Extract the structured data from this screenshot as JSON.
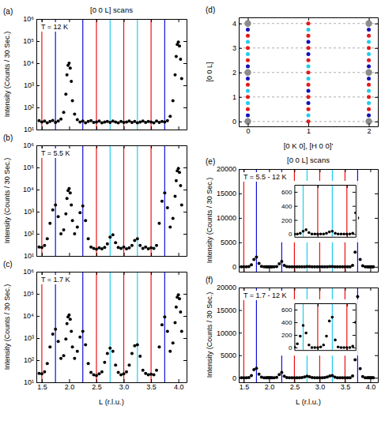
{
  "chart_data": [
    {
      "type": "scatter",
      "panel": "(a)",
      "title": "[0 0 L] scans",
      "annotation": "T = 12 K",
      "x": [
        1.45,
        1.5,
        1.55,
        1.6,
        1.65,
        1.7,
        1.75,
        1.8,
        1.85,
        1.9,
        1.94,
        1.96,
        1.98,
        2.0,
        2.02,
        2.04,
        2.06,
        2.1,
        2.15,
        2.2,
        2.25,
        2.3,
        2.35,
        2.4,
        2.45,
        2.5,
        2.55,
        2.6,
        2.65,
        2.7,
        2.75,
        2.8,
        2.85,
        2.9,
        2.95,
        3.0,
        3.05,
        3.1,
        3.15,
        3.2,
        3.25,
        3.3,
        3.35,
        3.4,
        3.45,
        3.5,
        3.55,
        3.6,
        3.65,
        3.7,
        3.75,
        3.8,
        3.85,
        3.9,
        3.94,
        3.96,
        3.98,
        4.0,
        4.02,
        4.04,
        4.06
      ],
      "values": [
        25,
        22,
        24,
        20,
        23,
        26,
        21,
        24,
        30,
        60,
        400,
        3000,
        8000,
        10000,
        6000,
        1500,
        200,
        50,
        28,
        22,
        24,
        20,
        23,
        25,
        21,
        22,
        24,
        20,
        22,
        23,
        21,
        24,
        22,
        20,
        23,
        21,
        22,
        24,
        21,
        23,
        20,
        22,
        24,
        21,
        23,
        22,
        20,
        24,
        21,
        23,
        22,
        25,
        40,
        200,
        3000,
        20000,
        70000,
        90000,
        60000,
        15000,
        2000
      ],
      "color": "#000000",
      "marker": "circle",
      "log": "y",
      "xlim": [
        1.4,
        4.15
      ],
      "ylim": [
        10,
        1000000
      ],
      "xticks": [
        1.5,
        {
          "value": 2,
          "label": "2.0"
        },
        2.5,
        {
          "value": 3,
          "label": "3.0"
        },
        3.5,
        {
          "value": 4,
          "label": "4.0"
        }
      ],
      "yticks": [
        {
          "value": 10,
          "label": "10¹"
        },
        {
          "value": 100,
          "label": "10²"
        },
        {
          "value": 1000,
          "label": "10³"
        },
        {
          "value": 10000,
          "label": "10⁴"
        },
        {
          "value": 100000,
          "label": "10⁵"
        },
        {
          "value": 1000000,
          "label": "10⁶"
        }
      ],
      "tick_labels": "y",
      "ylabel": "Intensity (Counts / 30 Sec.)",
      "vlines": {
        "values": [
          1.5,
          1.75,
          2.25,
          2.5,
          2.75,
          3.0,
          3.25,
          3.5,
          3.75
        ],
        "colors": [
          "#ee1111",
          "#1111dd",
          "#1111dd",
          "#ee1111",
          "#22ccee",
          "#ee1111",
          "#22ccee",
          "#ee1111",
          "#1111dd"
        ]
      }
    },
    {
      "type": "scatter",
      "panel": "(b)",
      "annotation": "T = 5.5 K",
      "x": [
        1.45,
        1.5,
        1.55,
        1.6,
        1.65,
        1.7,
        1.75,
        1.8,
        1.85,
        1.9,
        1.94,
        1.96,
        1.98,
        2.0,
        2.02,
        2.04,
        2.06,
        2.1,
        2.15,
        2.2,
        2.25,
        2.3,
        2.35,
        2.4,
        2.45,
        2.5,
        2.55,
        2.6,
        2.65,
        2.7,
        2.75,
        2.8,
        2.85,
        2.9,
        2.95,
        3.0,
        3.05,
        3.1,
        3.15,
        3.2,
        3.25,
        3.3,
        3.35,
        3.4,
        3.45,
        3.5,
        3.55,
        3.6,
        3.65,
        3.7,
        3.75,
        3.8,
        3.85,
        3.9,
        3.94,
        3.96,
        3.98,
        4.0,
        4.02,
        4.04,
        4.06
      ],
      "values": [
        25,
        24,
        30,
        60,
        300,
        1200,
        2000,
        600,
        100,
        150,
        800,
        4000,
        9000,
        11000,
        7000,
        2000,
        400,
        100,
        200,
        900,
        1800,
        400,
        60,
        25,
        22,
        20,
        23,
        21,
        24,
        35,
        70,
        90,
        40,
        24,
        22,
        25,
        21,
        23,
        30,
        50,
        60,
        30,
        22,
        25,
        21,
        23,
        22,
        30,
        300,
        3000,
        7000,
        1500,
        200,
        500,
        5000,
        25000,
        70000,
        90000,
        60000,
        15000,
        2000
      ],
      "color": "#000000",
      "marker": "circle",
      "log": "y",
      "xlim": [
        1.4,
        4.15
      ],
      "ylim": [
        10,
        1000000
      ],
      "xticks": [
        1.5,
        {
          "value": 2,
          "label": "2.0"
        },
        2.5,
        {
          "value": 3,
          "label": "3.0"
        },
        3.5,
        {
          "value": 4,
          "label": "4.0"
        }
      ],
      "yticks": [
        {
          "value": 10,
          "label": "10¹"
        },
        {
          "value": 100,
          "label": "10²"
        },
        {
          "value": 1000,
          "label": "10³"
        },
        {
          "value": 10000,
          "label": "10⁴"
        },
        {
          "value": 100000,
          "label": "10⁵"
        },
        {
          "value": 1000000,
          "label": "10⁶"
        }
      ],
      "tick_labels": "y",
      "ylabel": "Intensity (Counts / 30 Sec.)",
      "vlines": {
        "values": [
          1.5,
          1.75,
          2.25,
          2.5,
          2.75,
          3.0,
          3.25,
          3.5,
          3.75
        ],
        "colors": [
          "#ee1111",
          "#1111dd",
          "#1111dd",
          "#ee1111",
          "#22ccee",
          "#ee1111",
          "#22ccee",
          "#ee1111",
          "#1111dd"
        ]
      }
    },
    {
      "type": "scatter",
      "panel": "(c)",
      "annotation": "T = 1.7 K",
      "x": [
        1.45,
        1.5,
        1.55,
        1.6,
        1.65,
        1.7,
        1.75,
        1.8,
        1.85,
        1.9,
        1.94,
        1.96,
        1.98,
        2.0,
        2.02,
        2.04,
        2.06,
        2.1,
        2.15,
        2.2,
        2.25,
        2.3,
        2.35,
        2.4,
        2.45,
        2.5,
        2.55,
        2.6,
        2.65,
        2.7,
        2.75,
        2.8,
        2.85,
        2.9,
        2.95,
        3.0,
        3.05,
        3.1,
        3.15,
        3.2,
        3.25,
        3.3,
        3.35,
        3.4,
        3.45,
        3.5,
        3.55,
        3.6,
        3.65,
        3.7,
        3.75,
        3.8,
        3.85,
        3.9,
        3.94,
        3.96,
        3.98,
        4.0,
        4.02,
        4.04,
        4.06
      ],
      "values": [
        25,
        24,
        30,
        70,
        400,
        1500,
        2500,
        700,
        120,
        160,
        900,
        4500,
        9000,
        11000,
        7000,
        2000,
        400,
        120,
        250,
        1100,
        2000,
        500,
        70,
        28,
        22,
        20,
        24,
        30,
        80,
        200,
        350,
        250,
        60,
        28,
        22,
        24,
        30,
        60,
        200,
        450,
        500,
        150,
        35,
        25,
        22,
        23,
        22,
        35,
        400,
        4000,
        9000,
        2000,
        250,
        600,
        5000,
        25000,
        70000,
        90000,
        60000,
        15000,
        2000
      ],
      "color": "#000000",
      "marker": "circle",
      "log": "y",
      "xlim": [
        1.4,
        4.15
      ],
      "ylim": [
        10,
        1000000
      ],
      "xticks": [
        1.5,
        {
          "value": 2,
          "label": "2.0"
        },
        2.5,
        {
          "value": 3,
          "label": "3.0"
        },
        3.5,
        {
          "value": 4,
          "label": "4.0"
        }
      ],
      "yticks": [
        {
          "value": 10,
          "label": "10¹"
        },
        {
          "value": 100,
          "label": "10²"
        },
        {
          "value": 1000,
          "label": "10³"
        },
        {
          "value": 10000,
          "label": "10⁴"
        },
        {
          "value": 100000,
          "label": "10⁵"
        },
        {
          "value": 1000000,
          "label": "10⁶"
        }
      ],
      "xlabel": "L (r.l.u.)",
      "ylabel": "Intensity (Counts / 30 Sec.)",
      "vlines": {
        "values": [
          1.5,
          1.75,
          2.25,
          2.5,
          2.75,
          3.0,
          3.25,
          3.5,
          3.75
        ],
        "colors": [
          "#ee1111",
          "#1111dd",
          "#1111dd",
          "#ee1111",
          "#22ccee",
          "#ee1111",
          "#22ccee",
          "#ee1111",
          "#1111dd"
        ]
      }
    },
    {
      "type": "scatter",
      "panel": "(d)",
      "xlabel": "[0 K 0], [H 0 0]'",
      "ylabel": "[0 0 L]",
      "xlim": [
        -0.15,
        2.15
      ],
      "ylim": [
        -0.2,
        4.25
      ],
      "xticks": [
        0,
        1,
        2
      ],
      "yticks": [
        0,
        1,
        2,
        3,
        4
      ],
      "grid": true,
      "series": [
        {
          "color": "#8c8c8c",
          "marker": "large-circle",
          "x": [
            0,
            0,
            0,
            2,
            2,
            2
          ],
          "values": [
            0,
            2,
            4,
            0,
            2,
            4
          ]
        },
        {
          "color": "#e31a1c",
          "marker": "small-circle",
          "x": [
            0,
            0,
            0,
            0,
            0,
            0,
            1,
            1,
            1,
            1,
            1,
            1,
            1,
            1,
            1,
            2,
            2,
            2,
            2,
            2,
            2
          ],
          "values": [
            0.5,
            1,
            1.5,
            2.5,
            3,
            3.5,
            0,
            0.5,
            1,
            1.5,
            2,
            2.5,
            3,
            3.5,
            4,
            0.5,
            1,
            1.5,
            2.5,
            3,
            3.5
          ]
        },
        {
          "color": "#1111bb",
          "marker": "small-circle",
          "x": [
            0,
            0,
            0,
            0,
            1,
            1,
            1,
            1,
            2,
            2,
            2,
            2
          ],
          "values": [
            0.25,
            1.75,
            2.25,
            3.75,
            0.75,
            1.25,
            2.75,
            3.25,
            0.25,
            1.75,
            2.25,
            3.75
          ]
        },
        {
          "color": "#22ccee",
          "marker": "small-circle",
          "x": [
            0,
            0,
            0,
            0,
            1,
            1,
            1,
            1,
            2,
            2,
            2,
            2
          ],
          "values": [
            0.75,
            1.25,
            2.75,
            3.25,
            0.25,
            1.75,
            2.25,
            3.75,
            0.75,
            1.25,
            2.75,
            3.25
          ]
        }
      ]
    },
    {
      "type": "scatter",
      "panel": "(e)",
      "title": "[0 0 L] scans",
      "annotation": "T = 5.5 - 12 K",
      "x": [
        1.45,
        1.5,
        1.55,
        1.6,
        1.65,
        1.7,
        1.75,
        1.8,
        1.85,
        1.9,
        1.94,
        1.96,
        1.98,
        2.0,
        2.02,
        2.04,
        2.06,
        2.1,
        2.15,
        2.2,
        2.25,
        2.3,
        2.35,
        2.4,
        2.45,
        2.5,
        2.55,
        2.6,
        2.65,
        2.7,
        2.75,
        2.8,
        2.85,
        2.9,
        2.95,
        3.0,
        3.05,
        3.1,
        3.15,
        3.2,
        3.25,
        3.3,
        3.35,
        3.4,
        3.45,
        3.5,
        3.55,
        3.6,
        3.65,
        3.7,
        3.75,
        3.8,
        3.85,
        3.9,
        3.94,
        3.96,
        3.98,
        4.0,
        4.02,
        4.04,
        4.06
      ],
      "values": [
        0,
        0,
        10,
        40,
        400,
        1500,
        2000,
        700,
        100,
        20,
        0,
        0,
        0,
        0,
        0,
        0,
        0,
        0,
        50,
        600,
        1100,
        300,
        40,
        0,
        0,
        0,
        0,
        0,
        0,
        10,
        40,
        60,
        20,
        0,
        0,
        0,
        0,
        0,
        10,
        30,
        40,
        10,
        0,
        0,
        0,
        0,
        0,
        10,
        300,
        3000,
        10000,
        1500,
        200,
        0,
        0,
        0,
        0,
        0,
        0,
        0,
        0
      ],
      "color": "#000000",
      "marker": "circle",
      "xlim": [
        1.4,
        4.15
      ],
      "ylim": [
        -1000,
        20000
      ],
      "xticks": [
        1.5,
        {
          "value": 2,
          "label": "2.0"
        },
        2.5,
        {
          "value": 3,
          "label": "3.0"
        },
        3.5,
        {
          "value": 4,
          "label": "4.0"
        }
      ],
      "yticks": [
        0,
        5000,
        10000,
        15000,
        20000
      ],
      "tick_labels": "y",
      "ylabel": "Intensity (Counts / 30 Sec.)",
      "vlines": {
        "values": [
          1.5,
          1.75,
          2.25,
          2.5,
          2.75,
          3.0,
          3.25,
          3.5,
          3.75
        ],
        "colors": [
          "#ee1111",
          "#1111dd",
          "#1111dd",
          "#ee1111",
          "#22ccee",
          "#ee1111",
          "#22ccee",
          "#ee1111",
          "#1111dd"
        ]
      },
      "inset": {
        "xlim": [
          2.6,
          3.65
        ],
        "ylim": [
          -40,
          700
        ],
        "xticks": [
          3,
          3.5
        ],
        "yticks": [
          0,
          200,
          400,
          600
        ],
        "tick_labels": "y"
      }
    },
    {
      "type": "scatter",
      "panel": "(f)",
      "annotation": "T = 1.7 - 12 K",
      "x": [
        1.45,
        1.5,
        1.55,
        1.6,
        1.65,
        1.7,
        1.75,
        1.8,
        1.85,
        1.9,
        1.94,
        1.96,
        1.98,
        2.0,
        2.02,
        2.04,
        2.06,
        2.1,
        2.15,
        2.2,
        2.25,
        2.3,
        2.35,
        2.4,
        2.45,
        2.5,
        2.55,
        2.6,
        2.65,
        2.7,
        2.75,
        2.8,
        2.85,
        2.9,
        2.95,
        3.0,
        3.05,
        3.1,
        3.15,
        3.2,
        3.25,
        3.3,
        3.35,
        3.4,
        3.45,
        3.5,
        3.55,
        3.6,
        3.65,
        3.7,
        3.75,
        3.8,
        3.85,
        3.9,
        3.94,
        3.96,
        3.98,
        4.0,
        4.02,
        4.04,
        4.06
      ],
      "values": [
        0,
        0,
        10,
        50,
        500,
        1800,
        2100,
        800,
        120,
        20,
        0,
        0,
        0,
        0,
        0,
        0,
        0,
        0,
        80,
        700,
        1200,
        350,
        50,
        0,
        0,
        0,
        0,
        10,
        60,
        180,
        350,
        230,
        40,
        0,
        0,
        0,
        10,
        40,
        180,
        420,
        480,
        120,
        10,
        0,
        0,
        0,
        0,
        20,
        400,
        4000,
        18000,
        2000,
        250,
        0,
        0,
        0,
        0,
        0,
        0,
        0,
        0
      ],
      "color": "#000000",
      "marker": "circle",
      "xlim": [
        1.4,
        4.15
      ],
      "ylim": [
        -1000,
        20000
      ],
      "xticks": [
        1.5,
        {
          "value": 2,
          "label": "2.0"
        },
        2.5,
        {
          "value": 3,
          "label": "3.0"
        },
        3.5,
        {
          "value": 4,
          "label": "4.0"
        }
      ],
      "yticks": [
        0,
        5000,
        10000,
        15000,
        20000
      ],
      "xlabel": "L (r.l.u.)",
      "ylabel": "Intensity (Counts / 30 Sec.)",
      "vlines": {
        "values": [
          1.5,
          1.75,
          2.25,
          2.5,
          2.75,
          3.0,
          3.25,
          3.5,
          3.75
        ],
        "colors": [
          "#ee1111",
          "#1111dd",
          "#1111dd",
          "#ee1111",
          "#22ccee",
          "#ee1111",
          "#22ccee",
          "#ee1111",
          "#1111dd"
        ]
      },
      "inset": {
        "xlim": [
          2.6,
          3.65
        ],
        "ylim": [
          -40,
          700
        ],
        "xticks": [
          3,
          3.5
        ],
        "yticks": [
          0,
          200,
          400,
          600
        ],
        "tick_labels": "y"
      }
    }
  ]
}
